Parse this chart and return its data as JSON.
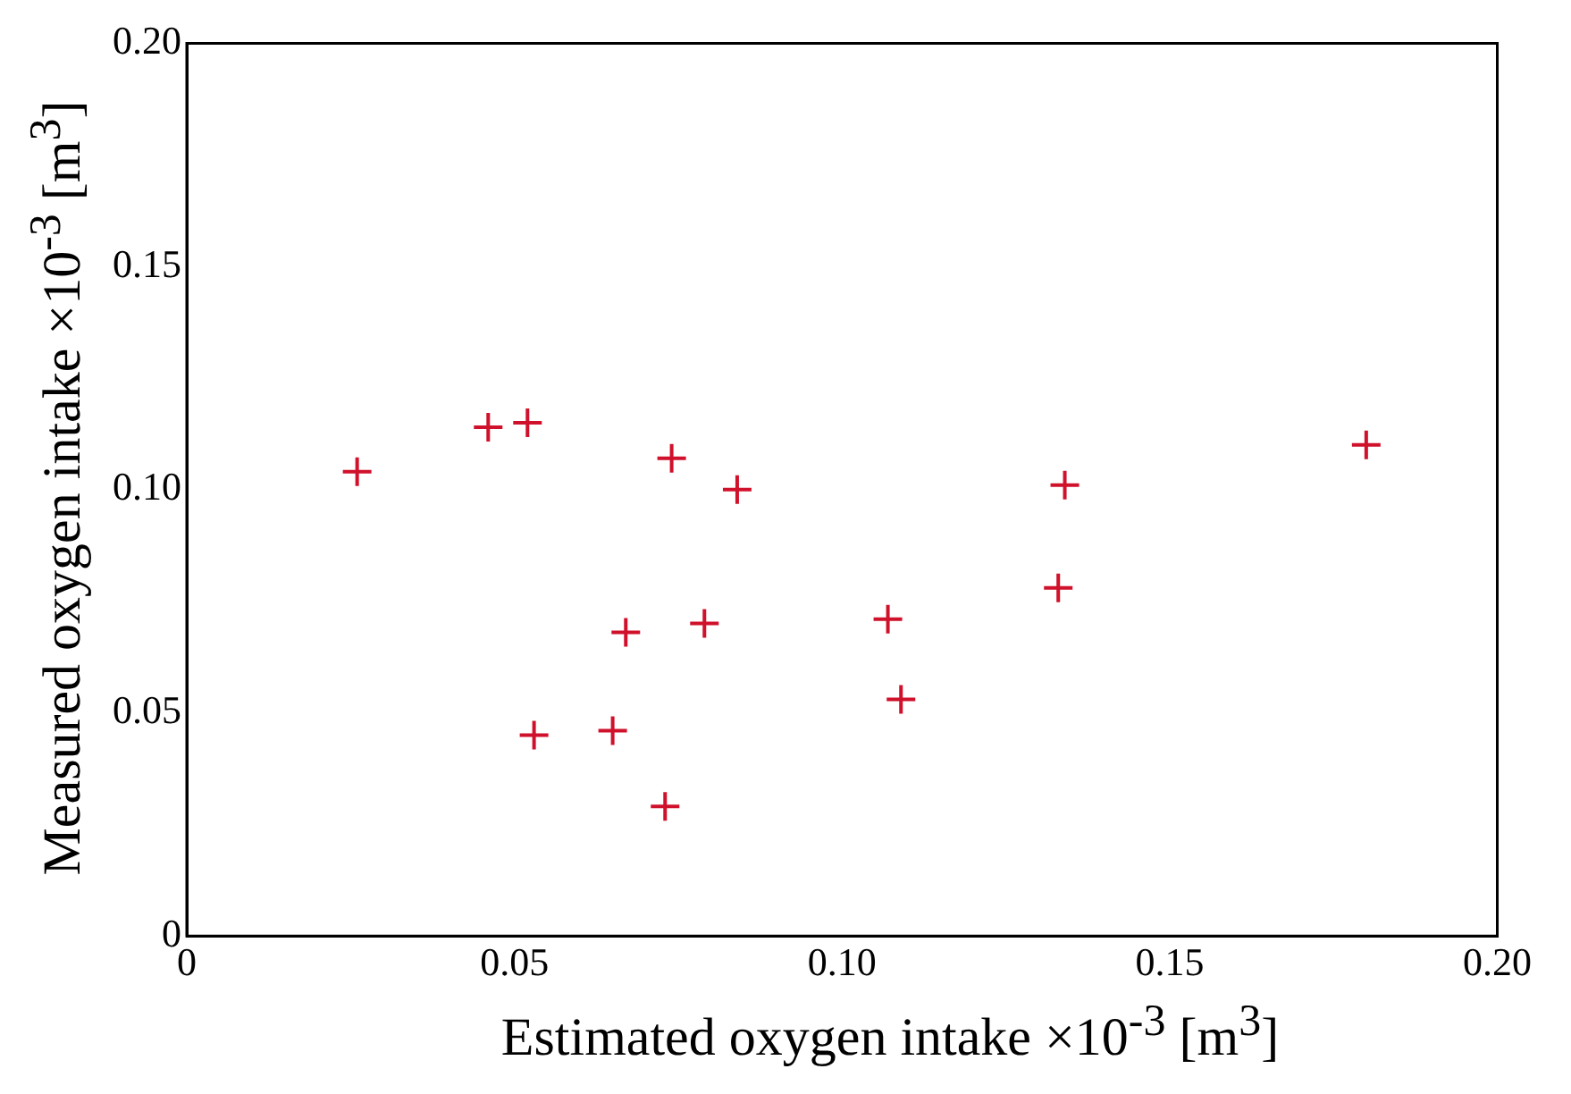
{
  "chart_data": {
    "type": "scatter",
    "xlabel": "Estimated oxygen intake ×10$^{-3}$ [m$^{3}$]",
    "ylabel": "Measured oxygen intake ×10$^{-3}$ [m$^{3}$]",
    "x": [
      0.026,
      0.046,
      0.052,
      0.074,
      0.084,
      0.067,
      0.079,
      0.053,
      0.065,
      0.073,
      0.107,
      0.109,
      0.133,
      0.134,
      0.18
    ],
    "series": [
      {
        "color": "#d0112b",
        "values": [
          0.104,
          0.114,
          0.115,
          0.107,
          0.1,
          0.068,
          0.07,
          0.045,
          0.046,
          0.029,
          0.071,
          0.053,
          0.078,
          0.101,
          0.11
        ]
      }
    ],
    "xlim": [
      0,
      0.2
    ],
    "ylim": [
      0,
      0.2
    ],
    "xticks": [
      0,
      0.05,
      {
        "value": 0.1,
        "label": "0.10"
      },
      0.15,
      {
        "value": 0.2,
        "label": "0.20"
      }
    ],
    "yticks": [
      0,
      0.05,
      {
        "value": 0.1,
        "label": "0.10"
      },
      0.15,
      {
        "value": 0.2,
        "label": "0.20"
      }
    ],
    "marker": "cross",
    "grid": false,
    "legend": false
  }
}
